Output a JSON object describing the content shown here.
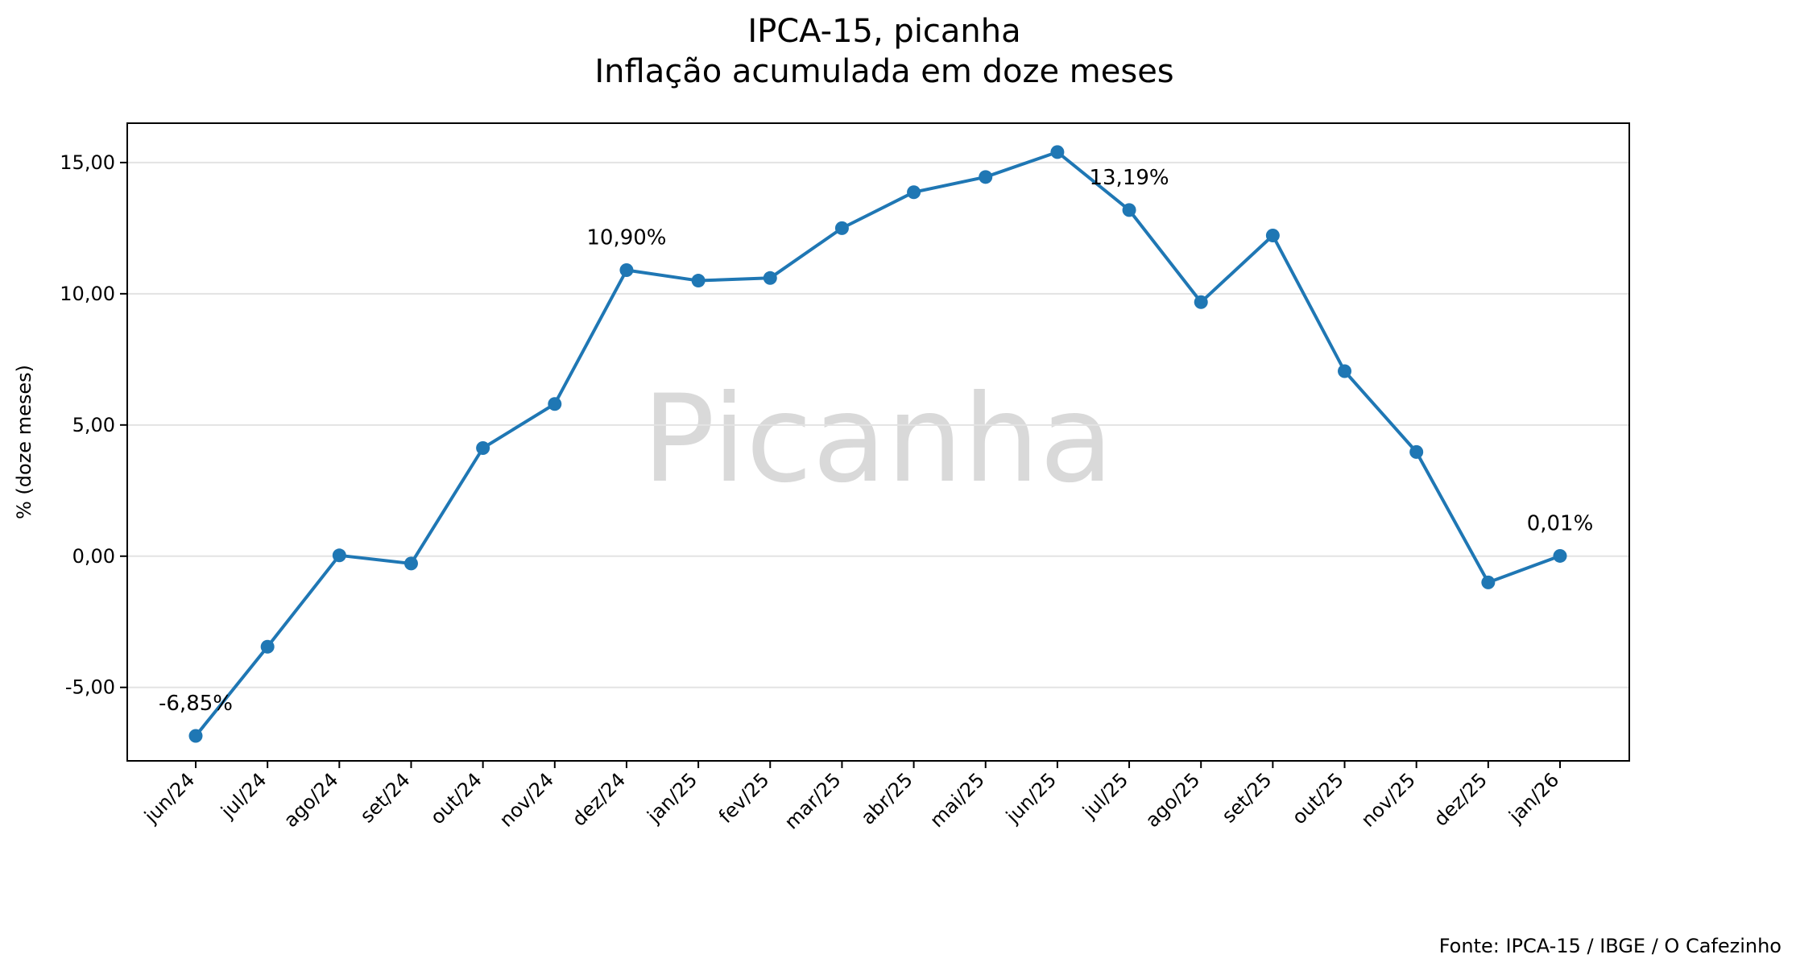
{
  "chart_data": {
    "type": "line",
    "title": "IPCA-15, picanha",
    "subtitle": "Inflação acumulada em doze meses",
    "ylabel": "% (doze meses)",
    "xlabel": "",
    "watermark": "Picanha",
    "source": "Fonte: IPCA-15 / IBGE / O Cafezinho",
    "ylim": [
      -7.8,
      16.5
    ],
    "yticks": [
      -5,
      0,
      5,
      10,
      15
    ],
    "ytick_labels": [
      "-5,00",
      "0,00",
      "5,00",
      "10,00",
      "15,00"
    ],
    "grid": "horizontal",
    "line_color": "#1f77b4",
    "categories": [
      "jun/24",
      "jul/24",
      "ago/24",
      "set/24",
      "out/24",
      "nov/24",
      "dez/24",
      "jan/25",
      "fev/25",
      "mar/25",
      "abr/25",
      "mai/25",
      "jun/25",
      "jul/25",
      "ago/25",
      "set/25",
      "out/25",
      "nov/25",
      "dez/25",
      "jan/26"
    ],
    "values": [
      -6.85,
      -3.45,
      0.03,
      -0.28,
      4.12,
      5.8,
      10.9,
      10.5,
      10.6,
      12.5,
      13.87,
      14.45,
      15.4,
      13.19,
      9.68,
      12.22,
      7.05,
      3.97,
      -1.0,
      0.01
    ],
    "annotations": [
      {
        "index": 0,
        "text": "-6,85%"
      },
      {
        "index": 6,
        "text": "10,90%"
      },
      {
        "index": 13,
        "text": "13,19%"
      },
      {
        "index": 19,
        "text": "0,01%"
      }
    ]
  }
}
